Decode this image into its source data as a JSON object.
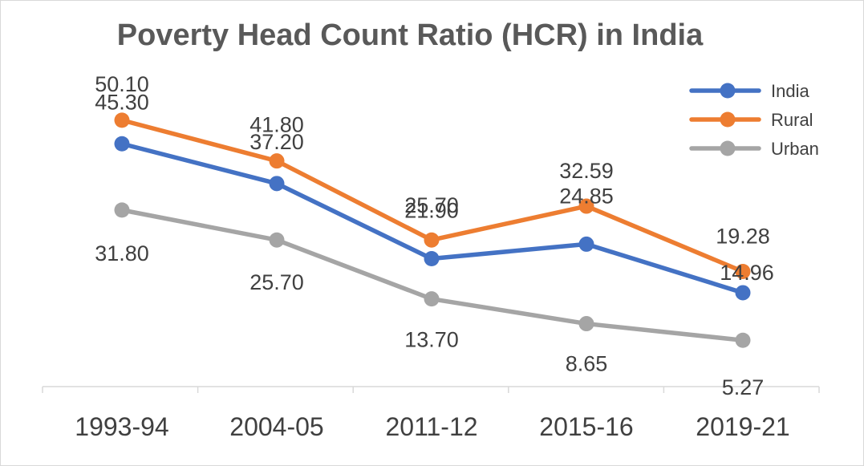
{
  "chart_data": {
    "type": "line",
    "title": "Poverty Head Count Ratio (HCR) in India",
    "categories": [
      "1993-94",
      "2004-05",
      "2011-12",
      "2015-16",
      "2019-21"
    ],
    "series": [
      {
        "name": "India",
        "values": [
          45.3,
          37.2,
          21.9,
          24.85,
          14.96
        ],
        "labels": [
          "45.30",
          "37.20",
          "21.90",
          "24.85",
          "14.96"
        ],
        "color": "#4472C4"
      },
      {
        "name": "Rural",
        "values": [
          50.1,
          41.8,
          25.7,
          32.59,
          19.28
        ],
        "labels": [
          "50.10",
          "41.80",
          "25.70",
          "32.59",
          "19.28"
        ],
        "color": "#ED7D31"
      },
      {
        "name": "Urban",
        "values": [
          31.8,
          25.7,
          13.7,
          8.65,
          5.27
        ],
        "labels": [
          "31.80",
          "25.70",
          "13.70",
          "8.65",
          "5.27"
        ],
        "color": "#A5A5A5"
      }
    ],
    "xlabel": "",
    "ylabel": "",
    "grid": false,
    "legend": "top-right"
  }
}
